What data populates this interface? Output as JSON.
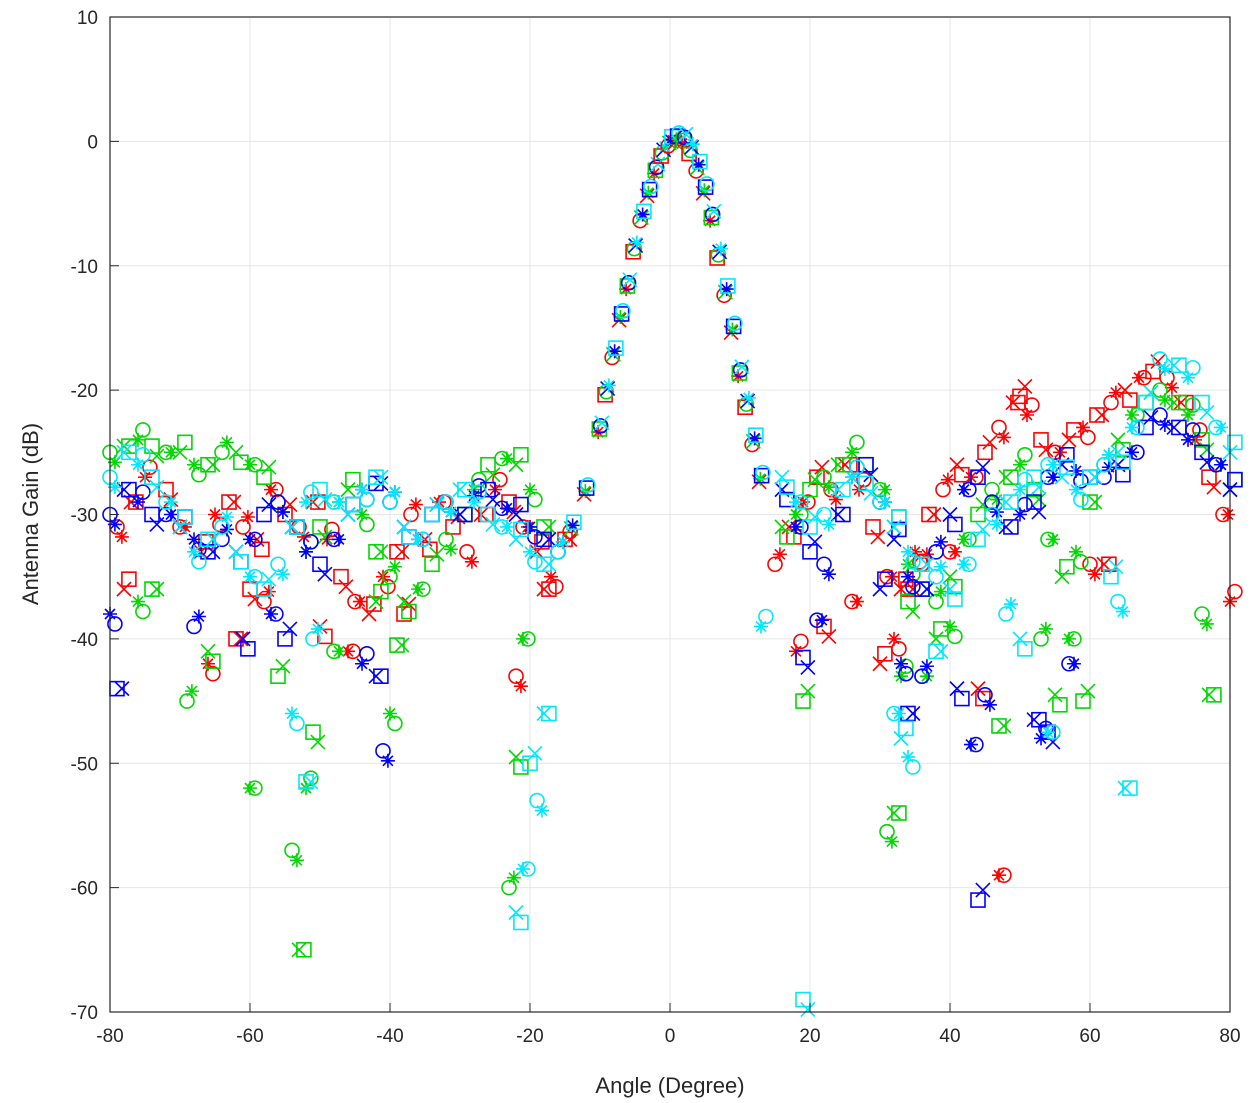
{
  "chart_data": {
    "type": "scatter",
    "title": "",
    "xlabel": "Angle (Degree)",
    "ylabel": "Antenna Gain (dB)",
    "xlim": [
      -80,
      80
    ],
    "ylim": [
      -70,
      10
    ],
    "xticks": [
      -80,
      -60,
      -40,
      -20,
      0,
      20,
      40,
      60,
      80
    ],
    "yticks": [
      10,
      0,
      -10,
      -20,
      -30,
      -40,
      -50,
      -60,
      -70
    ],
    "grid": true,
    "legend": "none",
    "colors": {
      "red": "#ff0000",
      "green": "#00d800",
      "blue": "#0000ff",
      "cyan": "#00e8ff"
    },
    "markers": [
      "o",
      "x",
      "*",
      "square"
    ],
    "main_lobe": {
      "x": [
        -14,
        -12,
        -10,
        -9,
        -8,
        -7,
        -6,
        -5,
        -4,
        -3,
        -2,
        -1,
        0,
        1,
        2,
        3,
        4,
        5,
        6,
        7,
        8,
        9,
        10,
        11,
        12,
        13
      ],
      "y": [
        -31,
        -28,
        -23,
        -20,
        -17,
        -14,
        -11.5,
        -8.5,
        -6,
        -4,
        -2.2,
        -0.8,
        0,
        0.3,
        0.2,
        -0.6,
        -2,
        -3.8,
        -6,
        -9,
        -12,
        -15,
        -18.5,
        -21,
        -24,
        -27
      ]
    },
    "series": [
      {
        "color": "red",
        "x": [
          -79,
          -77,
          -75,
          -72,
          -70,
          -67,
          -65,
          -63,
          -61,
          -59,
          -57,
          -55,
          -53,
          -51,
          -49,
          -47,
          -45,
          -43,
          -41,
          -39,
          -37,
          -35,
          -33,
          -31,
          -29,
          -27,
          -25,
          -23,
          -21,
          -19,
          -17,
          -15,
          15,
          17,
          19,
          21,
          23,
          25,
          27,
          29,
          31,
          33,
          35,
          37,
          39,
          41,
          43,
          45,
          47,
          49,
          51,
          53,
          55,
          57,
          59,
          61,
          63,
          65,
          67,
          69,
          71,
          73,
          75,
          77,
          79,
          -78,
          -66,
          -62,
          -58,
          -50,
          -46,
          -38,
          -22,
          -18,
          18,
          22,
          26,
          30,
          32,
          34,
          36,
          44,
          47,
          50,
          60,
          62,
          80,
          -60,
          40
        ],
        "y": [
          -31,
          -29,
          -27,
          -28,
          -31,
          -33,
          -30,
          -29,
          -31,
          -32,
          -28,
          -30,
          -31,
          -29,
          -32,
          -35,
          -37,
          -38,
          -35,
          -33,
          -30,
          -32,
          -29,
          -31,
          -33,
          -30,
          -28,
          -29,
          -31,
          -33,
          -35,
          -32,
          -34,
          -31,
          -29,
          -27,
          -28,
          -26,
          -28,
          -31,
          -35,
          -36,
          -33,
          -30,
          -28,
          -26,
          -27,
          -25,
          -23,
          -21,
          -22,
          -24,
          -25,
          -24,
          -23,
          -22,
          -21,
          -20,
          -19,
          -18.5,
          -19,
          -21,
          -24,
          -27,
          -30,
          -36,
          -42,
          -40,
          -37,
          -39,
          -41,
          -38,
          -43,
          -36,
          -41,
          -39,
          -37,
          -42,
          -40,
          -36,
          -34,
          -44,
          -59,
          -20.5,
          -34,
          -34,
          -37,
          -36,
          -33
        ],
        "marker": "mixed"
      },
      {
        "color": "green",
        "x": [
          -80,
          -78,
          -76,
          -74,
          -72,
          -70,
          -68,
          -66,
          -64,
          -62,
          -60,
          -58,
          -56,
          -54,
          -52,
          -50,
          -48,
          -46,
          -44,
          -42,
          -40,
          -38,
          -36,
          -34,
          -32,
          -30,
          -28,
          -26,
          -24,
          -22,
          -20,
          -18,
          -16,
          16,
          18,
          20,
          22,
          24,
          26,
          28,
          30,
          32,
          34,
          36,
          38,
          40,
          42,
          44,
          46,
          48,
          50,
          52,
          54,
          56,
          58,
          60,
          62,
          64,
          66,
          68,
          70,
          72,
          74,
          76,
          78,
          80,
          -76,
          -74,
          -69,
          -66,
          -60,
          -56,
          -54,
          -53,
          -52,
          -51,
          -48,
          -42,
          -40,
          -39,
          -23,
          -22,
          -21,
          19,
          31,
          32,
          33,
          34,
          36,
          38,
          40,
          47,
          53,
          55,
          57,
          59,
          76,
          77
        ],
        "y": [
          -25,
          -24.5,
          -24,
          -24.5,
          -25,
          -25,
          -26,
          -26,
          -25,
          -25,
          -26,
          -27,
          -29,
          -31,
          -33,
          -31,
          -29,
          -28,
          -30,
          -33,
          -35,
          -37,
          -36,
          -34,
          -32,
          -30,
          -28,
          -26,
          -25.5,
          -26,
          -28,
          -31,
          -33,
          -31,
          -30,
          -28,
          -27,
          -26,
          -25,
          -26,
          -28,
          -31,
          -34,
          -36,
          -37,
          -35,
          -32,
          -30,
          -28,
          -27,
          -26,
          -28,
          -32,
          -35,
          -33,
          -29,
          -26,
          -24,
          -22,
          -21,
          -20,
          -21,
          -22,
          -24,
          -26,
          -28,
          -37,
          -36,
          -45,
          -41,
          -52,
          -43,
          -57,
          -65,
          -52,
          -47.5,
          -41,
          -37,
          -46,
          -40.5,
          -60,
          -49.5,
          -40,
          -45,
          -55.5,
          -54,
          -43,
          -37,
          -43,
          -40,
          -39,
          -47,
          -40,
          -44.5,
          -40,
          -45,
          -38,
          -44.5
        ],
        "marker": "mixed"
      },
      {
        "color": "blue",
        "x": [
          -80,
          -78,
          -76,
          -74,
          -72,
          -70,
          -68,
          -66,
          -64,
          -62,
          -60,
          -58,
          -56,
          -54,
          -52,
          -50,
          -48,
          -46,
          -44,
          -42,
          -40,
          -38,
          -36,
          -34,
          -32,
          -30,
          -28,
          -26,
          -24,
          -22,
          -20,
          -18,
          -16,
          16,
          18,
          20,
          22,
          24,
          26,
          28,
          30,
          32,
          34,
          36,
          38,
          40,
          42,
          44,
          46,
          48,
          50,
          52,
          54,
          56,
          58,
          60,
          62,
          64,
          66,
          68,
          70,
          72,
          74,
          76,
          78,
          80,
          -80,
          -79,
          -68,
          -61,
          -57,
          -55,
          -41,
          -42,
          -44,
          19,
          21,
          30,
          33,
          34,
          36,
          41,
          43,
          44,
          45,
          52,
          53,
          54,
          57
        ],
        "y": [
          -30,
          -28,
          -29,
          -30,
          -30,
          -31,
          -32,
          -33,
          -32,
          -33,
          -32,
          -30,
          -29,
          -31,
          -33,
          -34,
          -32,
          -30,
          -28,
          -27.5,
          -29,
          -31,
          -32,
          -30,
          -29,
          -30,
          -28.5,
          -28,
          -29.5,
          -30,
          -31,
          -32,
          -33,
          -28,
          -31,
          -33,
          -34,
          -30,
          -27,
          -26,
          -29,
          -32,
          -35,
          -36,
          -33,
          -30,
          -28,
          -27,
          -29,
          -31,
          -30,
          -29,
          -27,
          -26,
          -26.5,
          -27,
          -27,
          -26,
          -25,
          -23,
          -22,
          -23,
          -24,
          -25,
          -26,
          -28,
          -38,
          -44,
          -39,
          -40,
          -38,
          -40,
          -49,
          -43,
          -42,
          -41.5,
          -38.5,
          -36,
          -42,
          -46,
          -43,
          -44,
          -48.5,
          -61,
          -44.5,
          -46.5,
          -48,
          -47.5,
          -42
        ],
        "marker": "mixed"
      },
      {
        "color": "cyan",
        "x": [
          -80,
          -78,
          -76,
          -74,
          -72,
          -70,
          -68,
          -66,
          -64,
          -62,
          -60,
          -58,
          -56,
          -54,
          -52,
          -50,
          -48,
          -46,
          -44,
          -42,
          -40,
          -38,
          -36,
          -34,
          -32,
          -30,
          -28,
          -26,
          -24,
          -22,
          -20,
          -18,
          -16,
          16,
          18,
          20,
          22,
          24,
          26,
          28,
          30,
          32,
          34,
          36,
          38,
          40,
          42,
          44,
          46,
          48,
          50,
          52,
          54,
          56,
          58,
          60,
          62,
          64,
          66,
          68,
          70,
          72,
          74,
          76,
          78,
          80,
          -54,
          -52,
          -51,
          -22,
          -21,
          -20,
          -19,
          -18,
          13,
          19,
          32,
          33,
          34,
          38,
          48,
          50,
          54,
          63,
          64,
          65
        ],
        "y": [
          -27,
          -25,
          -26,
          -27,
          -29,
          -31,
          -33,
          -32,
          -31,
          -33,
          -35,
          -36,
          -34,
          -31,
          -29,
          -28,
          -29,
          -30,
          -28,
          -27,
          -29,
          -31,
          -32,
          -30,
          -29,
          -28,
          -29,
          -30,
          -31,
          -32,
          -33,
          -34,
          -33,
          -27,
          -29,
          -31,
          -30,
          -28,
          -27,
          -27.5,
          -29,
          -31,
          -33,
          -34,
          -35,
          -36,
          -34,
          -32,
          -30,
          -29,
          -28,
          -27,
          -26,
          -27,
          -28,
          -27,
          -26,
          -25,
          -23,
          -21,
          -17.5,
          -18,
          -19,
          -21,
          -23,
          -25,
          -46,
          -51.5,
          -40,
          -62,
          -58.5,
          -50,
          -53,
          -46,
          -39,
          -69,
          -46,
          -48,
          -49.5,
          -41,
          -38,
          -40,
          -47.5,
          -35,
          -37,
          -52
        ],
        "marker": "mixed"
      }
    ]
  }
}
